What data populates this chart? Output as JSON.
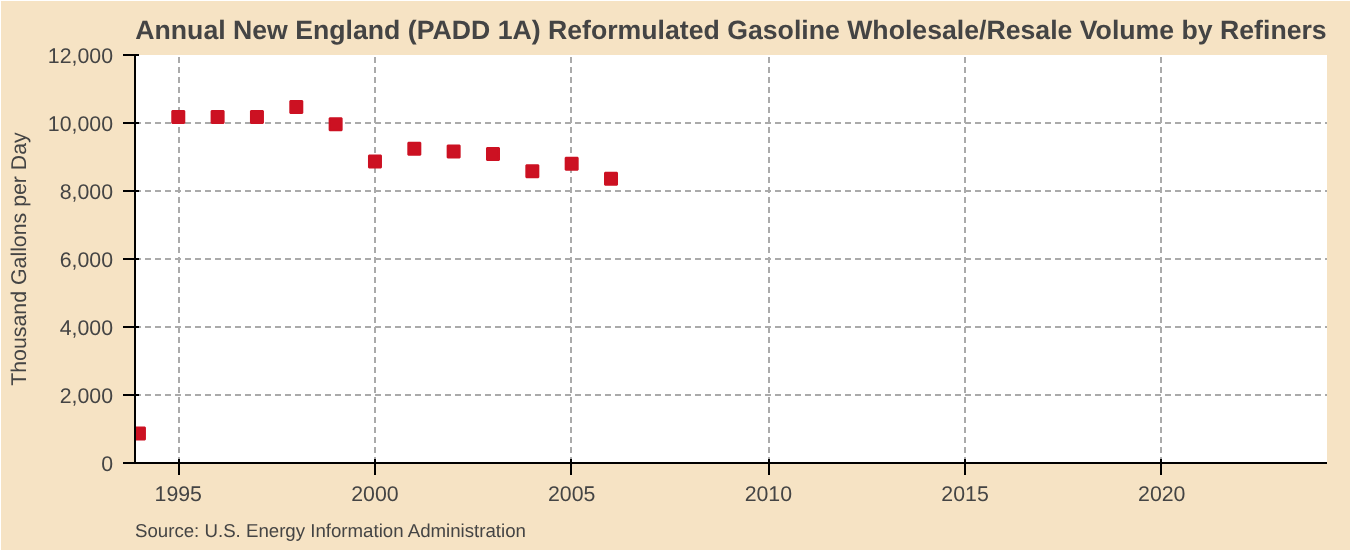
{
  "chart_data": {
    "type": "scatter",
    "title": "Annual New England (PADD 1A) Reformulated Gasoline Wholesale/Resale Volume by Refiners",
    "ylabel": "Thousand Gallons per Day",
    "annotations": [
      "Source: U.S. Energy Information Administration"
    ],
    "x": [
      1994,
      1995,
      1996,
      1997,
      1998,
      1999,
      2000,
      2001,
      2002,
      2003,
      2004,
      2005,
      2006
    ],
    "series": [
      {
        "color": "#cc1122",
        "values": [
          870,
          10180,
          10180,
          10180,
          10470,
          9960,
          8870,
          9240,
          9160,
          9090,
          8580,
          8800,
          8360
        ]
      }
    ],
    "marker": "square",
    "grid": true,
    "xlim": [
      1993.9,
      2024.2
    ],
    "xticks": [
      1995,
      2000,
      2005,
      2010,
      2015,
      2020
    ],
    "ylim": [
      0,
      12000
    ],
    "yticks": [
      {
        "value": 0,
        "label": "0"
      },
      {
        "value": 2000,
        "label": "2,000"
      },
      {
        "value": 4000,
        "label": "4,000"
      },
      {
        "value": 6000,
        "label": "6,000"
      },
      {
        "value": 8000,
        "label": "8,000"
      },
      {
        "value": 10000,
        "label": "10,000"
      },
      {
        "value": 12000,
        "label": "12,000"
      }
    ]
  }
}
